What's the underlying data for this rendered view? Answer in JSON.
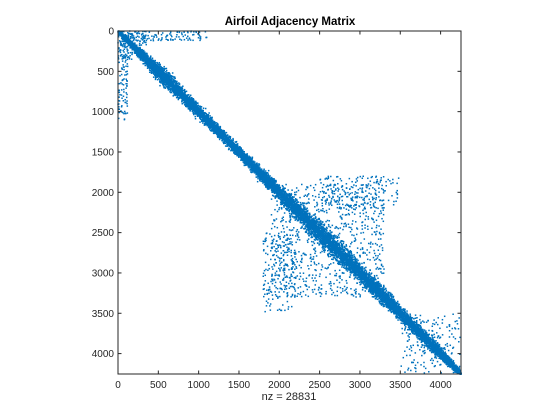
{
  "chart_data": {
    "type": "scatter",
    "title": "Airfoil Adjacency Matrix",
    "xlabel": "nz = 28831",
    "ylabel": "",
    "xlim": [
      0,
      4253
    ],
    "ylim": [
      0,
      4253
    ],
    "y_axis_reversed": true,
    "x_ticks": [
      0,
      500,
      1000,
      1500,
      2000,
      2500,
      3000,
      3500,
      4000
    ],
    "y_ticks": [
      0,
      500,
      1000,
      1500,
      2000,
      2500,
      3000,
      3500,
      4000
    ],
    "x_tick_labels": [
      "0",
      "500",
      "1000",
      "1500",
      "2000",
      "2500",
      "3000",
      "3500",
      "4000"
    ],
    "y_tick_labels": [
      "0",
      "500",
      "1000",
      "1500",
      "2000",
      "2500",
      "3000",
      "3500",
      "4000"
    ],
    "marker_color": "#0072BD",
    "grid": false,
    "description_of_pattern": "sparsity pattern of a symmetric matrix",
    "diagonal_band_halfwidth": [
      [
        0,
        30
      ],
      [
        500,
        140
      ],
      [
        1000,
        110
      ],
      [
        1500,
        90
      ],
      [
        2000,
        140
      ],
      [
        2500,
        190
      ],
      [
        3000,
        150
      ],
      [
        3500,
        120
      ],
      [
        4000,
        100
      ],
      [
        4253,
        30
      ]
    ],
    "off_band_clusters": [
      {
        "x": [
          30,
          350
        ],
        "y": [
          0,
          180
        ]
      },
      {
        "x": [
          0,
          120
        ],
        "y": [
          300,
          1100
        ]
      },
      {
        "x": [
          1900,
          3300
        ],
        "y": [
          1900,
          3300
        ]
      },
      {
        "x": [
          2500,
          3300
        ],
        "y": [
          1800,
          2200
        ]
      },
      {
        "x": [
          1800,
          2200
        ],
        "y": [
          2500,
          3500
        ]
      },
      {
        "x": [
          3500,
          4200
        ],
        "y": [
          3500,
          4253
        ]
      }
    ]
  }
}
